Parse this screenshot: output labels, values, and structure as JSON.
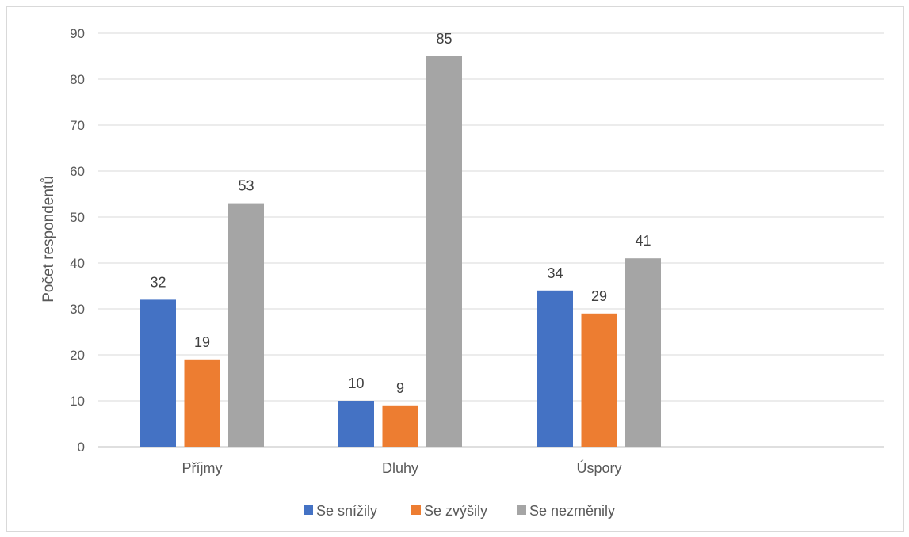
{
  "chart_data": {
    "type": "bar",
    "title": "",
    "xlabel": "",
    "ylabel": "Počet respondentů",
    "categories": [
      "Příjmy",
      "Dluhy",
      "Úspory"
    ],
    "series": [
      {
        "name": "Se snížily",
        "values": [
          32,
          10,
          34
        ],
        "color": "#4472C4"
      },
      {
        "name": "Se zvýšily",
        "values": [
          19,
          9,
          29
        ],
        "color": "#ED7D31"
      },
      {
        "name": "Se nezměnily",
        "values": [
          53,
          85,
          41
        ],
        "color": "#A5A5A5"
      }
    ],
    "ylim": [
      0,
      90
    ],
    "yticks": [
      0,
      10,
      20,
      30,
      40,
      50,
      60,
      70,
      80,
      90
    ],
    "grid": true,
    "legend": "bottom",
    "data_labels": true
  }
}
